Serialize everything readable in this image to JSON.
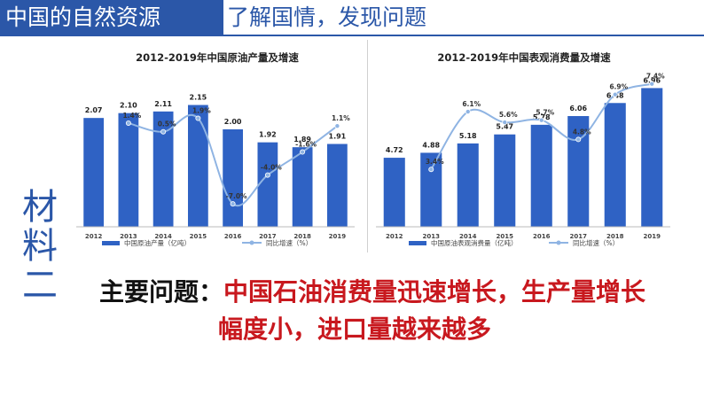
{
  "header": {
    "title": "中国的自然资源",
    "subtitle": "了解国情，发现问题"
  },
  "side_label": [
    "材",
    "料",
    "二"
  ],
  "conclusion": {
    "prefix": "主要问题：",
    "line1": "中国石油消费量迅速增长，生产量增长",
    "line2": "幅度小，进口量越来越多"
  },
  "colors": {
    "accent": "#2b57a8",
    "bar": "#2f62c4",
    "line": "#8fb4e3",
    "highlight": "#c8181e"
  },
  "chart_data": [
    {
      "type": "bar",
      "title": "2012-2019年中国原油产量及增速",
      "categories": [
        "2012",
        "2013",
        "2014",
        "2015",
        "2016",
        "2017",
        "2018",
        "2019"
      ],
      "series": [
        {
          "name": "中国原油产量（亿吨）",
          "type": "bar",
          "values": [
            2.07,
            2.1,
            2.11,
            2.15,
            2.0,
            1.92,
            1.89,
            1.91
          ],
          "labels": [
            "2.07",
            "2.10",
            "2.11",
            "2.15",
            "2.00",
            "1.92",
            "1.89",
            "1.91"
          ]
        },
        {
          "name": "同比增速（%）",
          "type": "line",
          "values": [
            null,
            1.4,
            0.5,
            1.9,
            -7.0,
            -4.0,
            -1.6,
            1.1
          ],
          "labels": [
            "",
            "1.4%",
            "0.5%",
            "1.9%",
            "-7.0%",
            "-4.0%",
            "-1.6%",
            "1.1%"
          ]
        }
      ],
      "bar_ylim": [
        1.4,
        2.3
      ],
      "line_ylim": [
        -8,
        6
      ]
    },
    {
      "type": "bar",
      "title": "2012-2019年中国表观消费量及增速",
      "categories": [
        "2012",
        "2013",
        "2014",
        "2015",
        "2016",
        "2017",
        "2018",
        "2019"
      ],
      "series": [
        {
          "name": "中国原油表观消费量（亿吨）",
          "type": "bar",
          "values": [
            4.72,
            4.88,
            5.18,
            5.47,
            5.78,
            6.06,
            6.48,
            6.96
          ],
          "labels": [
            "4.72",
            "4.88",
            "5.18",
            "5.47",
            "5.78",
            "6.06",
            "6.48",
            "6.96"
          ]
        },
        {
          "name": "同比增速（%）",
          "type": "line",
          "values": [
            null,
            3.4,
            6.1,
            5.6,
            5.7,
            4.8,
            6.9,
            7.4
          ],
          "labels": [
            "",
            "3.4%",
            "6.1%",
            "5.6%",
            "5.7%",
            "4.8%",
            "6.9%",
            "7.4%"
          ]
        }
      ],
      "bar_ylim": [
        2.5,
        7.2
      ],
      "line_ylim": [
        2.0,
        7.8
      ]
    }
  ]
}
